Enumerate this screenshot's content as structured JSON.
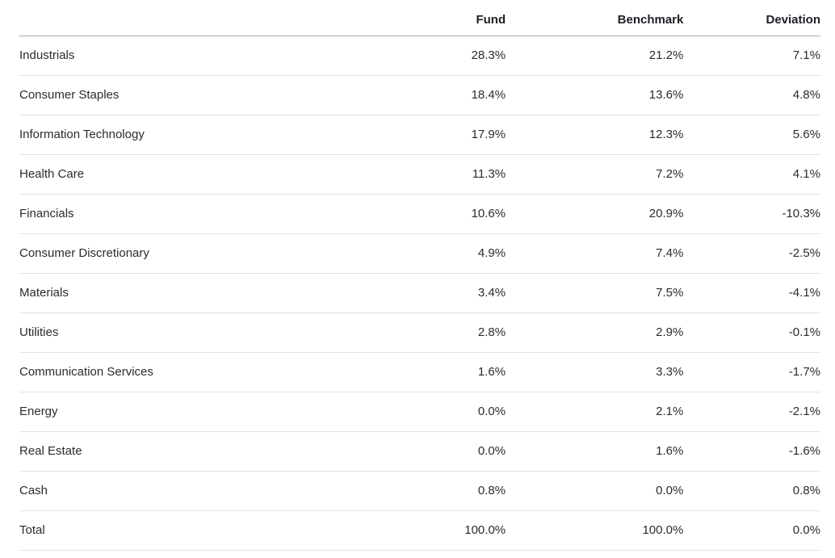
{
  "table": {
    "columns": {
      "label": "",
      "fund": "Fund",
      "benchmark": "Benchmark",
      "deviation": "Deviation"
    },
    "rows": [
      {
        "label": "Industrials",
        "fund": "28.3%",
        "benchmark": "21.2%",
        "deviation": "7.1%"
      },
      {
        "label": "Consumer Staples",
        "fund": "18.4%",
        "benchmark": "13.6%",
        "deviation": "4.8%"
      },
      {
        "label": "Information Technology",
        "fund": "17.9%",
        "benchmark": "12.3%",
        "deviation": "5.6%"
      },
      {
        "label": "Health Care",
        "fund": "11.3%",
        "benchmark": "7.2%",
        "deviation": "4.1%"
      },
      {
        "label": "Financials",
        "fund": "10.6%",
        "benchmark": "20.9%",
        "deviation": "-10.3%"
      },
      {
        "label": "Consumer Discretionary",
        "fund": "4.9%",
        "benchmark": "7.4%",
        "deviation": "-2.5%"
      },
      {
        "label": "Materials",
        "fund": "3.4%",
        "benchmark": "7.5%",
        "deviation": "-4.1%"
      },
      {
        "label": "Utilities",
        "fund": "2.8%",
        "benchmark": "2.9%",
        "deviation": "-0.1%"
      },
      {
        "label": "Communication Services",
        "fund": "1.6%",
        "benchmark": "3.3%",
        "deviation": "-1.7%"
      },
      {
        "label": "Energy",
        "fund": "0.0%",
        "benchmark": "2.1%",
        "deviation": "-2.1%"
      },
      {
        "label": "Real Estate",
        "fund": "0.0%",
        "benchmark": "1.6%",
        "deviation": "-1.6%"
      },
      {
        "label": "Cash",
        "fund": "0.8%",
        "benchmark": "0.0%",
        "deviation": "0.8%"
      },
      {
        "label": "Total",
        "fund": "100.0%",
        "benchmark": "100.0%",
        "deviation": "0.0%"
      }
    ]
  },
  "chart_data": {
    "type": "table",
    "title": "",
    "categories": [
      "Industrials",
      "Consumer Staples",
      "Information Technology",
      "Health Care",
      "Financials",
      "Consumer Discretionary",
      "Materials",
      "Utilities",
      "Communication Services",
      "Energy",
      "Real Estate",
      "Cash",
      "Total"
    ],
    "series": [
      {
        "name": "Fund",
        "values": [
          28.3,
          18.4,
          17.9,
          11.3,
          10.6,
          4.9,
          3.4,
          2.8,
          1.6,
          0.0,
          0.0,
          0.8,
          100.0
        ]
      },
      {
        "name": "Benchmark",
        "values": [
          21.2,
          13.6,
          12.3,
          7.2,
          20.9,
          7.4,
          7.5,
          2.9,
          3.3,
          2.1,
          1.6,
          0.0,
          100.0
        ]
      },
      {
        "name": "Deviation",
        "values": [
          7.1,
          4.8,
          5.6,
          4.1,
          -10.3,
          -2.5,
          -4.1,
          -0.1,
          -1.7,
          -2.1,
          -1.6,
          0.8,
          0.0
        ]
      }
    ],
    "unit": "%"
  },
  "colors": {
    "background": "#ffffff",
    "header_text": "#1e1e26",
    "body_text": "#2b2b31",
    "header_rule": "#a9aeb2",
    "row_rule": "#e3e3e3"
  }
}
